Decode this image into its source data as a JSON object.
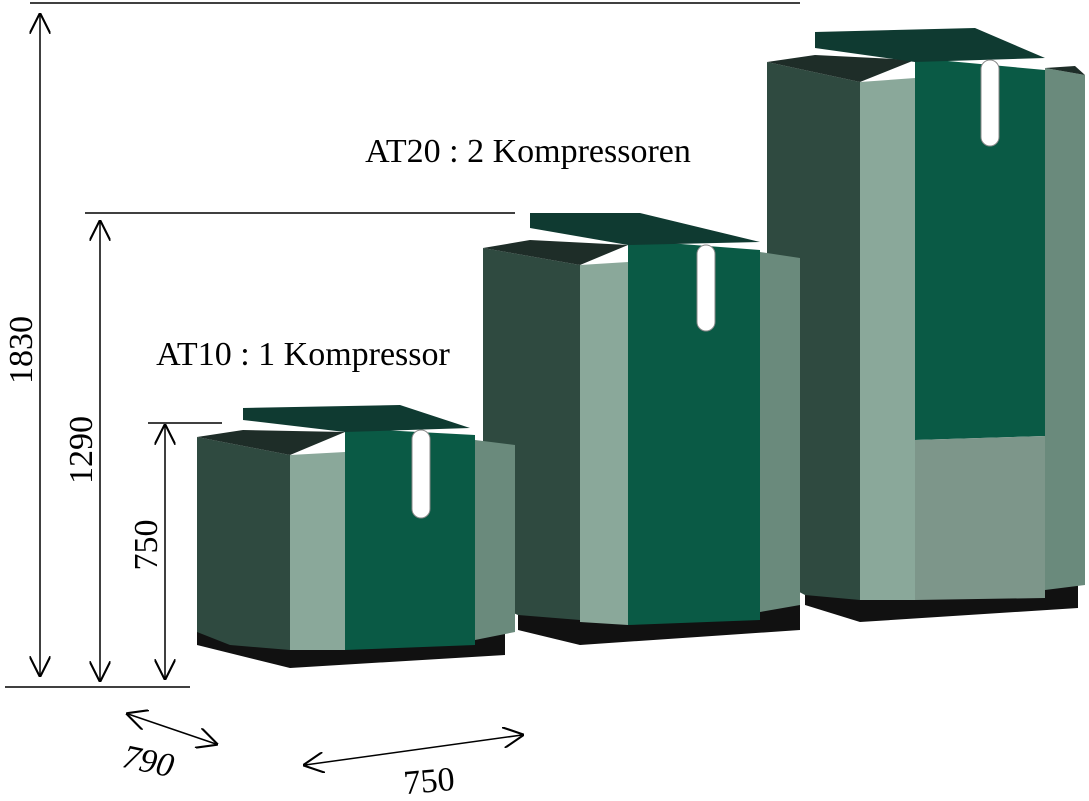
{
  "labels": {
    "at20": "AT20 : 2 Kompressoren",
    "at10": "AT10 : 1 Kompressor"
  },
  "dimensions": {
    "height_at20": "1830",
    "height_at20_mid": "1290",
    "height_at10": "750",
    "depth": "790",
    "width": "750"
  }
}
